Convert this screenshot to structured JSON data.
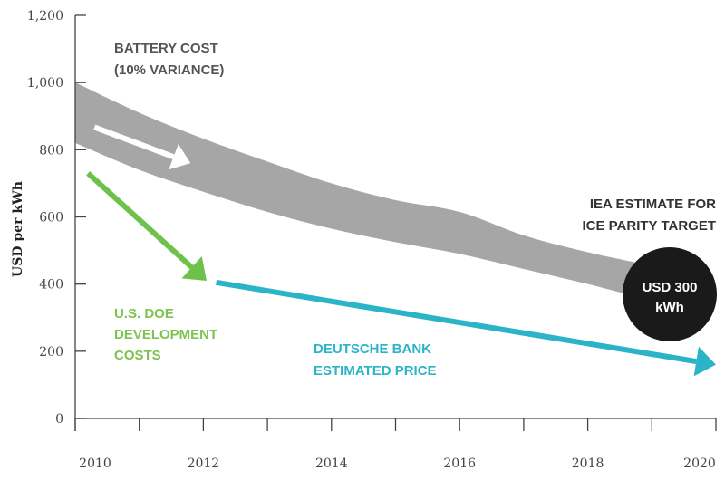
{
  "chart_data": {
    "type": "area",
    "title": "",
    "xlabel": "",
    "ylabel": "USD per kWh",
    "xlim": [
      2010,
      2020
    ],
    "ylim": [
      0,
      1200
    ],
    "x_ticks": [
      2010,
      2012,
      2014,
      2016,
      2018,
      2020
    ],
    "y_ticks": [
      0,
      200,
      400,
      600,
      800,
      1000,
      1200
    ],
    "y_tick_labels": [
      "0",
      "200",
      "400",
      "600",
      "800",
      "1,000",
      "1,200"
    ],
    "grid": false,
    "series": [
      {
        "name": "BATTERY COST (10% VARIANCE)",
        "type": "band",
        "color": "#a6a6a6",
        "x": [
          2010,
          2011,
          2012,
          2013,
          2014,
          2015,
          2016,
          2017,
          2018,
          2019
        ],
        "upper": [
          1000,
          910,
          833,
          765,
          700,
          650,
          615,
          545,
          495,
          455
        ],
        "lower": [
          820,
          740,
          675,
          615,
          565,
          525,
          490,
          445,
          400,
          350
        ]
      },
      {
        "name": "U.S. DOE DEVELOPMENT COSTS",
        "type": "arrow",
        "color": "#6cc24a",
        "x": [
          2010.2,
          2012.05
        ],
        "y": [
          730,
          410
        ]
      },
      {
        "name": "DEUTSCHE BANK ESTIMATED PRICE",
        "type": "arrow",
        "color": "#2bb3c8",
        "x": [
          2012.2,
          2020
        ],
        "y": [
          405,
          160
        ]
      }
    ],
    "annotations": {
      "battery_line1": "BATTERY COST",
      "battery_line2": "(10% VARIANCE)",
      "doe_line1": "U.S. DOE",
      "doe_line2": "DEVELOPMENT",
      "doe_line3": "COSTS",
      "db_line1": "DEUTSCHE BANK",
      "db_line2": "ESTIMATED PRICE",
      "iea_line1": "IEA ESTIMATE FOR",
      "iea_line2": "ICE PARITY TARGET",
      "target_line1": "USD 300",
      "target_line2": "kWh"
    },
    "trend_arrow": {
      "color": "#ffffff",
      "x": [
        2010.3,
        2011.8
      ],
      "y": [
        867,
        760
      ]
    },
    "target_color": "#1a1a1a"
  }
}
